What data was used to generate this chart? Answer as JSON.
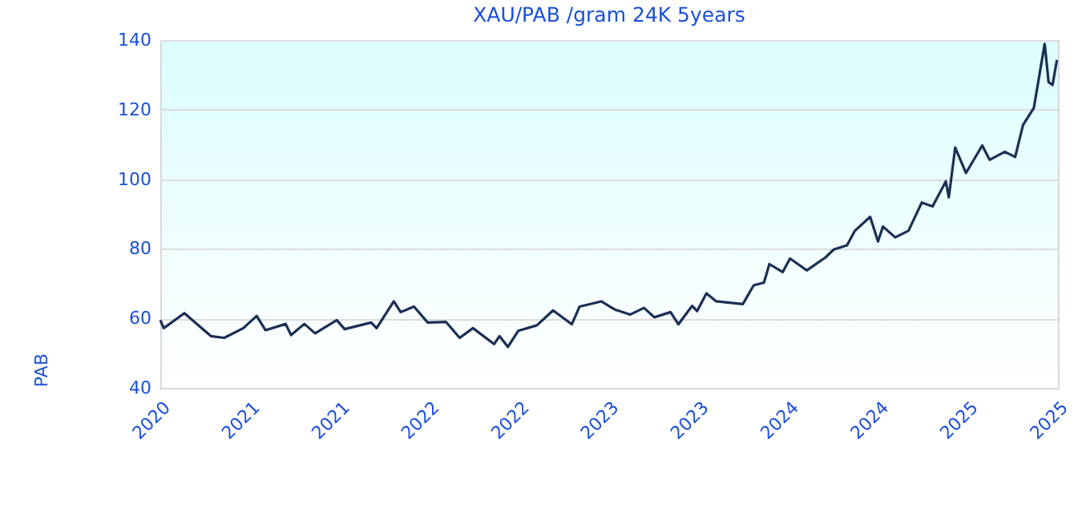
{
  "chart_data": {
    "type": "line",
    "title": "XAU/PAB /gram 24K 5years",
    "ylabel": "PAB",
    "x": [
      "2020-10-20",
      "2020-10-27",
      "2020-12-08",
      "2021-01-31",
      "2021-02-27",
      "2021-04-07",
      "2021-05-04",
      "2021-05-22",
      "2021-07-02",
      "2021-07-13",
      "2021-08-09",
      "2021-08-31",
      "2021-10-14",
      "2021-10-30",
      "2021-12-23",
      "2022-01-03",
      "2022-02-07",
      "2022-02-21",
      "2022-03-20",
      "2022-04-17",
      "2022-05-24",
      "2022-06-21",
      "2022-07-18",
      "2022-08-30",
      "2022-09-10",
      "2022-09-27",
      "2022-10-18",
      "2022-11-25",
      "2022-12-28",
      "2023-02-04",
      "2023-02-20",
      "2023-04-05",
      "2023-05-02",
      "2023-06-03",
      "2023-07-01",
      "2023-07-22",
      "2023-08-24",
      "2023-09-09",
      "2023-10-07",
      "2023-10-17",
      "2023-11-05",
      "2023-11-25",
      "2024-01-18",
      "2024-02-09",
      "2024-03-01",
      "2024-03-12",
      "2024-04-08",
      "2024-04-23",
      "2024-05-27",
      "2024-07-04",
      "2024-07-21",
      "2024-08-17",
      "2024-09-02",
      "2024-10-03",
      "2024-10-19",
      "2024-10-29",
      "2024-11-23",
      "2024-12-20",
      "2025-01-16",
      "2025-02-07",
      "2025-03-06",
      "2025-03-12",
      "2025-03-25",
      "2025-04-16",
      "2025-05-19",
      "2025-06-03",
      "2025-07-04",
      "2025-07-25",
      "2025-08-10",
      "2025-09-01",
      "2025-09-23",
      "2025-10-01",
      "2025-10-09",
      "2025-10-18"
    ],
    "series": [
      {
        "color": "#1b2f55",
        "values": [
          59.5,
          57.2,
          61.5,
          54.9,
          54.4,
          57.2,
          60.7,
          56.6,
          58.4,
          55.2,
          58.4,
          55.7,
          59.5,
          56.9,
          58.8,
          57.2,
          64.9,
          61.8,
          63.4,
          58.8,
          59.0,
          54.4,
          57.2,
          52.6,
          54.9,
          51.8,
          56.4,
          58.0,
          62.3,
          58.3,
          63.4,
          64.9,
          62.6,
          61.1,
          63.0,
          60.3,
          61.8,
          58.3,
          63.6,
          62.1,
          67.2,
          64.9,
          64.1,
          69.5,
          70.3,
          75.6,
          73.3,
          77.2,
          73.8,
          77.5,
          79.8,
          81.0,
          85.2,
          89.2,
          82.1,
          86.4,
          83.3,
          85.2,
          93.3,
          92.2,
          99.4,
          94.8,
          109.1,
          101.8,
          109.7,
          105.6,
          107.9,
          106.4,
          115.6,
          120.5,
          138.9,
          127.9,
          127.1,
          134.3
        ]
      }
    ],
    "xlim": [
      "2020-10-20",
      "2025-10-20"
    ],
    "xticks": [
      {
        "value": "2020-10-20",
        "label": "2020"
      },
      {
        "value": "2021-04-20",
        "label": "2021"
      },
      {
        "value": "2021-10-20",
        "label": "2021"
      },
      {
        "value": "2022-04-20",
        "label": "2022"
      },
      {
        "value": "2022-10-20",
        "label": "2022"
      },
      {
        "value": "2023-04-20",
        "label": "2023"
      },
      {
        "value": "2023-10-20",
        "label": "2023"
      },
      {
        "value": "2024-04-20",
        "label": "2024"
      },
      {
        "value": "2024-10-20",
        "label": "2024"
      },
      {
        "value": "2025-04-20",
        "label": "2025"
      },
      {
        "value": "2025-10-20",
        "label": "2025"
      }
    ],
    "ylim": [
      40,
      140
    ],
    "yticks": [
      40,
      60,
      80,
      100,
      120,
      140
    ],
    "grid": "y",
    "marker": "none",
    "line_style": "solid"
  }
}
